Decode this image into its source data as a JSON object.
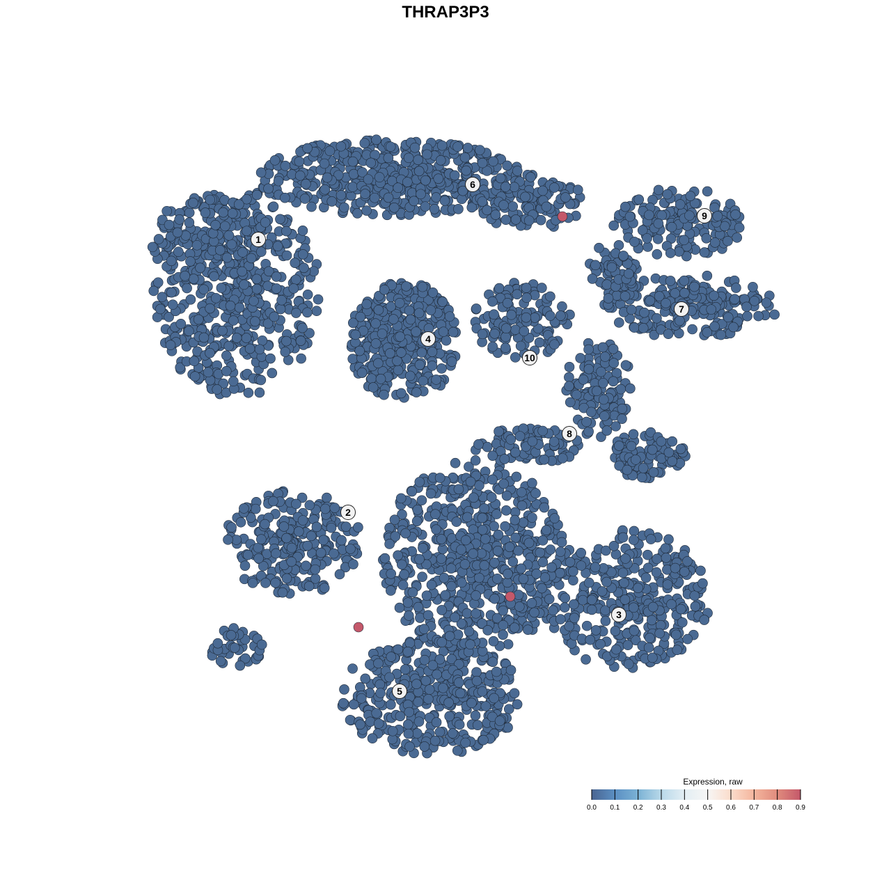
{
  "chart_data": {
    "type": "scatter",
    "title": "THRAP3P3",
    "xlabel": "",
    "ylabel": "",
    "grid": false,
    "axes_visible": false,
    "point_color_default": "#4a6a93",
    "point_value_default": 0.0,
    "clusters": [
      {
        "label": "1",
        "label_pos": [
          -26.9,
          29.6
        ],
        "blobs": [
          [
            -30,
            22,
            12,
            15,
            500
          ],
          [
            -34,
            30,
            9,
            6,
            150
          ]
        ]
      },
      {
        "label": "2",
        "label_pos": [
          -14.0,
          -9.6
        ],
        "blobs": [
          [
            -22,
            -14,
            10,
            7.5,
            250
          ],
          [
            -30,
            -29,
            4,
            3,
            40
          ]
        ]
      },
      {
        "label": "3",
        "label_pos": [
          24.9,
          -24.3
        ],
        "blobs": [
          [
            26,
            -22,
            12,
            10,
            350
          ]
        ]
      },
      {
        "label": "4",
        "label_pos": [
          -2.5,
          15.3
        ],
        "blobs": [
          [
            -6,
            15,
            8,
            8.5,
            350
          ]
        ]
      },
      {
        "label": "5",
        "label_pos": [
          -6.6,
          -35.3
        ],
        "blobs": [
          [
            -2,
            -36,
            13,
            8.5,
            400
          ],
          [
            4,
            -16,
            13,
            14,
            600
          ]
        ]
      },
      {
        "label": "6",
        "label_pos": [
          3.9,
          37.5
        ],
        "blobs": [
          [
            -8,
            38.5,
            19,
            5.5,
            500
          ],
          [
            12,
            35,
            8,
            4,
            120
          ]
        ]
      },
      {
        "label": "7",
        "label_pos": [
          33.9,
          19.6
        ],
        "blobs": [
          [
            35,
            20,
            13,
            4.5,
            220
          ],
          [
            24,
            25,
            4,
            4,
            60
          ]
        ]
      },
      {
        "label": "8",
        "label_pos": [
          17.8,
          1.7
        ],
        "blobs": [
          [
            22,
            8,
            5,
            7,
            120
          ],
          [
            29,
            -1.5,
            5.5,
            3.5,
            100
          ],
          [
            12,
            0,
            8,
            2.5,
            80
          ]
        ]
      },
      {
        "label": "9",
        "label_pos": [
          37.2,
          33.0
        ],
        "blobs": [
          [
            33.5,
            32,
            9.5,
            5,
            150
          ]
        ]
      },
      {
        "label": "10",
        "label_pos": [
          12.1,
          12.6
        ],
        "blobs": [
          [
            11,
            18,
            7,
            5.5,
            120
          ]
        ]
      }
    ],
    "highlighted_points": [
      {
        "x": 16.8,
        "y": 32.9,
        "value": 0.9
      },
      {
        "x": 9.3,
        "y": -21.7,
        "value": 0.9
      },
      {
        "x": -12.5,
        "y": -26.1,
        "value": 0.9
      }
    ],
    "legend": {
      "title": "Expression, raw",
      "placement": "bottom-right",
      "ticks": [
        "0.0",
        "0.1",
        "0.2",
        "0.3",
        "0.4",
        "0.5",
        "0.6",
        "0.7",
        "0.8",
        "0.9"
      ],
      "range": [
        0,
        0.9
      ],
      "colors": [
        "#4a6591",
        "#5b8fc3",
        "#7bb2d5",
        "#b9d9e9",
        "#e3eef4",
        "#f7f6f5",
        "#fbdccb",
        "#f4b59d",
        "#e08b7d",
        "#c4586a"
      ]
    }
  }
}
